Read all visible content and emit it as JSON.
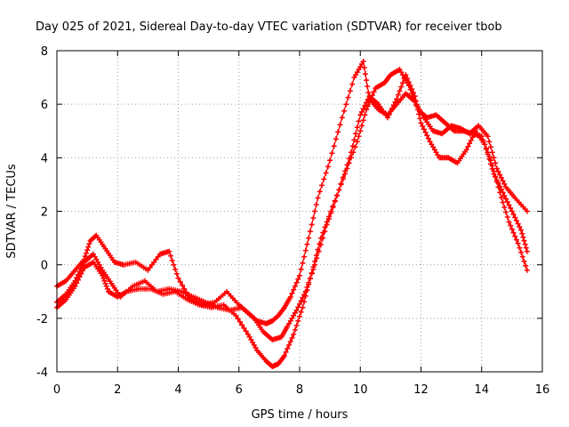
{
  "chart_data": {
    "type": "line",
    "title": "Day 025 of 2021, Sidereal Day-to-day VTEC variation (SDTVAR) for receiver tbob",
    "xlabel": "GPS time / hours",
    "ylabel": "SDTVAR / TECUs",
    "xlim": [
      0,
      16
    ],
    "ylim": [
      -4,
      8
    ],
    "xticks": [
      0,
      2,
      4,
      6,
      8,
      10,
      12,
      14,
      16
    ],
    "yticks": [
      -4,
      -2,
      0,
      2,
      4,
      6,
      8
    ],
    "grid": true,
    "marker": "+",
    "color": "#ff0000",
    "series": [
      {
        "x": [
          0.0,
          0.3,
          0.6,
          0.9,
          1.1,
          1.3,
          1.6,
          1.9,
          2.2,
          2.6,
          3.0,
          3.4,
          3.7,
          4.0,
          4.4,
          4.8,
          5.2,
          5.6,
          6.0,
          6.3,
          6.6,
          6.9,
          7.1,
          7.3,
          7.5,
          7.7,
          8.0,
          8.3,
          8.6,
          9.0,
          9.4,
          9.8,
          10.1,
          10.3,
          10.6,
          10.9,
          11.2,
          11.5,
          11.8,
          12.1,
          12.4,
          12.7,
          13.0,
          13.3,
          13.6,
          13.9,
          14.2,
          14.5,
          14.8,
          15.1,
          15.5
        ],
        "y": [
          -0.8,
          -0.6,
          -0.2,
          0.2,
          0.9,
          1.1,
          0.6,
          0.1,
          0.0,
          0.1,
          -0.2,
          0.4,
          0.5,
          -0.5,
          -1.3,
          -1.5,
          -1.4,
          -1.0,
          -1.5,
          -1.8,
          -2.1,
          -2.2,
          -2.1,
          -1.9,
          -1.6,
          -1.2,
          -0.4,
          1.0,
          2.5,
          3.9,
          5.5,
          7.0,
          7.6,
          6.2,
          5.8,
          5.6,
          6.0,
          6.4,
          6.1,
          5.5,
          5.0,
          4.9,
          5.2,
          5.1,
          4.9,
          5.2,
          4.8,
          3.6,
          2.9,
          2.5,
          2.0
        ]
      },
      {
        "x": [
          0.0,
          0.3,
          0.6,
          0.9,
          1.2,
          1.5,
          1.8,
          2.1,
          2.5,
          2.9,
          3.3,
          3.7,
          4.1,
          4.5,
          4.9,
          5.3,
          5.7,
          6.1,
          6.5,
          6.8,
          7.1,
          7.4,
          7.6,
          7.9,
          8.2,
          8.5,
          8.9,
          9.3,
          9.7,
          10.0,
          10.3,
          10.6,
          10.9,
          11.2,
          11.5,
          11.8,
          12.0,
          12.3,
          12.6,
          12.9,
          13.2,
          13.5,
          13.8,
          14.1,
          14.4,
          14.7,
          15.0,
          15.3,
          15.5
        ],
        "y": [
          -1.4,
          -1.1,
          -0.6,
          0.1,
          0.4,
          -0.2,
          -0.7,
          -1.2,
          -0.8,
          -0.6,
          -1.0,
          -0.9,
          -1.0,
          -1.2,
          -1.4,
          -1.6,
          -1.7,
          -1.6,
          -2.0,
          -2.5,
          -2.8,
          -2.7,
          -2.3,
          -1.7,
          -1.0,
          0.0,
          1.5,
          2.8,
          4.2,
          5.6,
          6.3,
          6.0,
          5.5,
          6.2,
          7.1,
          6.3,
          5.3,
          4.6,
          4.0,
          4.0,
          3.8,
          4.3,
          5.0,
          4.5,
          3.4,
          2.7,
          2.0,
          1.3,
          0.5
        ]
      },
      {
        "x": [
          0.0,
          0.3,
          0.6,
          0.9,
          1.2,
          1.5,
          1.7,
          2.0,
          2.3,
          2.7,
          3.1,
          3.5,
          3.9,
          4.3,
          4.7,
          5.1,
          5.5,
          5.9,
          6.3,
          6.6,
          6.9,
          7.1,
          7.3,
          7.5,
          7.8,
          8.1,
          8.4,
          8.7,
          9.1,
          9.5,
          9.9,
          10.2,
          10.5,
          10.8,
          11.0,
          11.3,
          11.6,
          11.9,
          12.2,
          12.5,
          12.8,
          13.1,
          13.4,
          13.7,
          14.0,
          14.3,
          14.6,
          14.9,
          15.2,
          15.5
        ],
        "y": [
          -1.6,
          -1.3,
          -0.8,
          -0.1,
          0.1,
          -0.4,
          -1.0,
          -1.2,
          -1.0,
          -0.9,
          -0.9,
          -1.1,
          -1.0,
          -1.3,
          -1.5,
          -1.6,
          -1.5,
          -1.9,
          -2.6,
          -3.2,
          -3.6,
          -3.8,
          -3.7,
          -3.4,
          -2.6,
          -1.6,
          -0.3,
          1.0,
          2.2,
          3.4,
          4.6,
          5.8,
          6.6,
          6.8,
          7.1,
          7.3,
          6.7,
          5.8,
          5.5,
          5.6,
          5.3,
          5.0,
          5.0,
          4.9,
          4.8,
          3.9,
          2.7,
          1.6,
          0.8,
          -0.2
        ]
      }
    ]
  }
}
